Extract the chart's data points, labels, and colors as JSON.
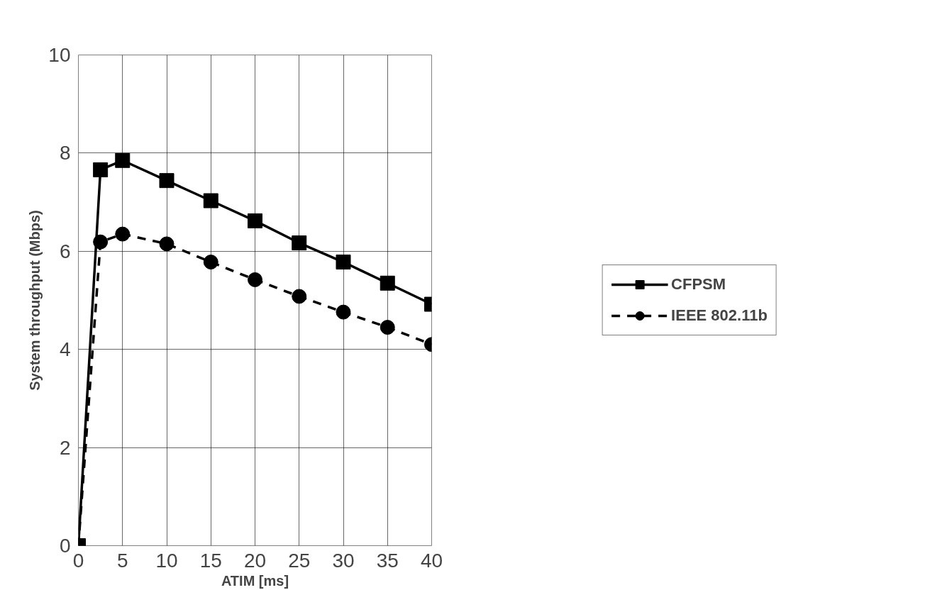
{
  "chart_data": {
    "type": "line",
    "xlabel": "ATIM [ms]",
    "ylabel": "System throughput (Mbps)",
    "x": [
      0,
      2.5,
      5,
      10,
      15,
      20,
      25,
      30,
      35,
      40
    ],
    "xlim": [
      0,
      40
    ],
    "xticks": [
      0,
      5,
      10,
      15,
      20,
      25,
      30,
      35,
      40
    ],
    "ylim": [
      0,
      10
    ],
    "yticks": [
      0,
      2,
      4,
      6,
      8,
      10
    ],
    "grid": true,
    "legend": "right",
    "series": [
      {
        "name": "CFPSM",
        "color": "#000000",
        "marker": "square",
        "line_style": "solid",
        "values": [
          0,
          7.66,
          7.85,
          7.44,
          7.03,
          6.62,
          6.17,
          5.78,
          5.35,
          4.92
        ]
      },
      {
        "name": "IEEE 802.11b",
        "color": "#000000",
        "marker": "circle",
        "line_style": "dashed",
        "values": [
          0,
          6.19,
          6.35,
          6.15,
          5.78,
          5.42,
          5.08,
          4.76,
          4.45,
          4.1
        ]
      }
    ]
  }
}
